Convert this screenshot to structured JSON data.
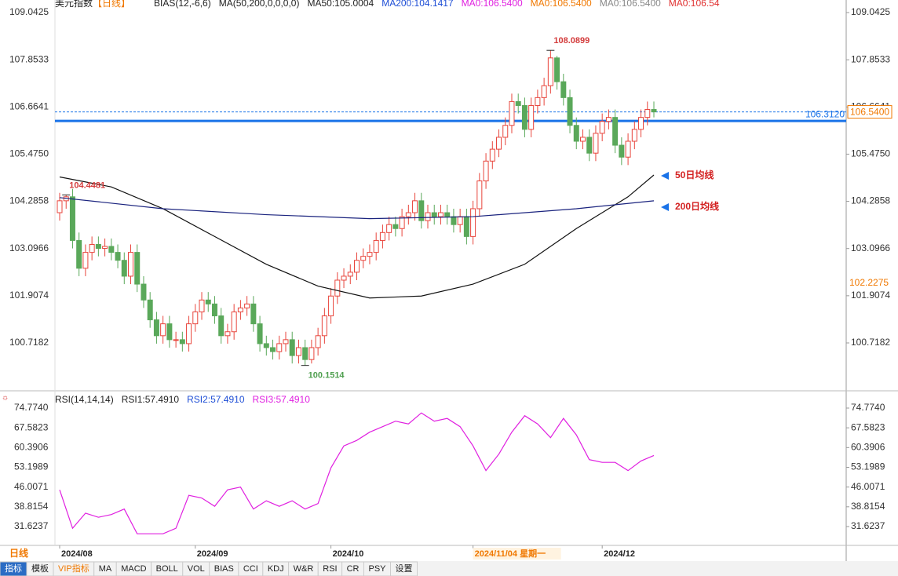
{
  "chart_data": [
    {
      "type": "candlestick",
      "title": "美元指数",
      "period": "【日线】",
      "indicators": [
        {
          "text": "BIAS(12,-6,6)",
          "color": "#222222"
        },
        {
          "text": "MA(50,200,0,0,0,0)",
          "color": "#222222"
        },
        {
          "text": "MA50:105.0004",
          "color": "#222222"
        },
        {
          "text": "MA200:104.1417",
          "color": "#1f4fd6"
        },
        {
          "text": "MA0:106.5400",
          "color": "#e020e0"
        },
        {
          "text": "MA0:106.5400",
          "color": "#f07800"
        },
        {
          "text": "MA0:106.5400",
          "color": "#888888"
        },
        {
          "text": "MA0:106.54",
          "color": "#e03030"
        }
      ],
      "open": [
        104.0,
        104.3,
        104.4,
        103.3,
        102.6,
        103.0,
        103.2,
        103.1,
        103.15,
        103.0,
        102.8,
        102.4,
        103.0,
        102.2,
        101.8,
        101.3,
        100.9,
        101.2,
        100.8,
        100.8,
        100.7,
        101.2,
        101.5,
        101.8,
        101.7,
        101.4,
        100.9,
        101.0,
        101.5,
        101.6,
        101.7,
        101.2,
        100.7,
        100.6,
        100.5,
        100.7,
        100.8,
        100.4,
        100.6,
        100.3,
        100.6,
        100.9,
        101.4,
        101.9,
        102.3,
        102.4,
        102.5,
        102.8,
        102.9,
        103.0,
        103.3,
        103.5,
        103.7,
        103.6,
        103.9,
        104.0,
        104.3,
        103.8,
        104.0,
        103.9,
        104.0,
        103.9,
        103.7,
        103.9,
        103.4,
        104.1,
        104.8,
        105.3,
        105.6,
        105.9,
        106.2,
        106.8,
        106.7,
        106.1,
        106.7,
        106.9,
        107.2,
        107.9,
        107.3,
        106.9,
        106.2,
        105.8,
        105.9,
        105.5,
        106.0,
        106.3,
        106.4,
        105.7,
        105.4,
        105.8,
        106.1,
        106.4,
        106.6
      ],
      "high": [
        104.5,
        104.4481,
        104.6,
        103.5,
        103.2,
        103.4,
        103.4,
        103.35,
        103.35,
        103.2,
        103.0,
        103.2,
        103.2,
        102.4,
        102.0,
        101.5,
        101.4,
        101.4,
        101.0,
        101.0,
        101.4,
        101.7,
        102.0,
        102.0,
        101.9,
        101.6,
        101.2,
        101.7,
        101.8,
        101.9,
        101.9,
        101.4,
        100.9,
        100.8,
        100.9,
        101.0,
        101.0,
        100.8,
        100.8,
        100.8,
        101.1,
        101.6,
        102.1,
        102.5,
        102.6,
        102.7,
        103.0,
        103.1,
        103.2,
        103.5,
        103.7,
        103.9,
        103.9,
        104.1,
        104.2,
        104.5,
        104.5,
        104.2,
        104.2,
        104.2,
        104.2,
        104.1,
        104.1,
        104.1,
        104.3,
        105.0,
        105.5,
        105.8,
        106.1,
        106.4,
        107.0,
        107.0,
        106.9,
        106.9,
        107.1,
        107.4,
        108.0899,
        107.95,
        107.5,
        107.1,
        106.4,
        106.1,
        106.1,
        106.2,
        106.5,
        106.6,
        106.6,
        105.9,
        106.0,
        106.3,
        106.6,
        106.8,
        106.8
      ],
      "low": [
        103.8,
        104.1,
        103.1,
        102.4,
        102.4,
        102.8,
        102.9,
        102.9,
        102.8,
        102.6,
        102.2,
        102.2,
        102.0,
        101.6,
        101.1,
        100.7,
        100.7,
        100.6,
        100.6,
        100.5,
        100.5,
        101.0,
        101.3,
        101.5,
        101.2,
        100.7,
        100.7,
        100.8,
        101.3,
        101.4,
        101.0,
        100.5,
        100.4,
        100.3,
        100.3,
        100.5,
        100.2,
        100.2,
        100.1514,
        100.2,
        100.4,
        100.7,
        101.2,
        101.7,
        102.1,
        102.2,
        102.3,
        102.6,
        102.7,
        102.8,
        103.1,
        103.3,
        103.4,
        103.4,
        103.7,
        103.8,
        103.6,
        103.6,
        103.7,
        103.7,
        103.7,
        103.5,
        103.5,
        103.2,
        103.2,
        103.9,
        104.6,
        105.1,
        105.4,
        105.7,
        106.0,
        106.5,
        105.9,
        105.9,
        106.5,
        106.7,
        107.0,
        107.1,
        106.7,
        106.0,
        105.6,
        105.6,
        105.3,
        105.3,
        105.8,
        106.1,
        105.5,
        105.2,
        105.2,
        105.6,
        105.9,
        106.2,
        106.4
      ],
      "close": [
        104.3,
        104.4,
        103.3,
        102.6,
        103.0,
        103.2,
        103.1,
        103.15,
        103.0,
        102.8,
        102.4,
        103.0,
        102.2,
        101.8,
        101.3,
        100.9,
        101.2,
        100.8,
        100.8,
        100.7,
        101.2,
        101.5,
        101.8,
        101.7,
        101.4,
        100.9,
        101.0,
        101.5,
        101.6,
        101.7,
        101.2,
        100.7,
        100.6,
        100.5,
        100.7,
        100.8,
        100.4,
        100.6,
        100.3,
        100.6,
        100.9,
        101.4,
        101.9,
        102.3,
        102.4,
        102.5,
        102.8,
        102.9,
        103.0,
        103.3,
        103.5,
        103.7,
        103.6,
        103.9,
        104.0,
        104.3,
        103.8,
        104.0,
        103.9,
        104.0,
        103.9,
        103.7,
        103.9,
        103.4,
        104.1,
        104.8,
        105.3,
        105.6,
        105.9,
        106.2,
        106.8,
        106.7,
        106.1,
        106.7,
        106.9,
        107.2,
        107.9,
        107.3,
        106.9,
        106.2,
        105.8,
        105.9,
        105.5,
        106.0,
        106.3,
        106.4,
        105.7,
        105.4,
        105.8,
        106.1,
        106.4,
        106.6,
        106.54
      ],
      "up_color": "#e8453c",
      "down_color": "#5aa85a",
      "lines": [
        {
          "name": "50日均线",
          "color": "#111111",
          "x_index": [
            0,
            8,
            16,
            24,
            32,
            40,
            48,
            56,
            64,
            72,
            80,
            88,
            92
          ],
          "values": [
            104.9,
            104.65,
            104.1,
            103.4,
            102.7,
            102.15,
            101.85,
            101.9,
            102.2,
            102.7,
            103.6,
            104.4,
            104.95
          ]
        },
        {
          "name": "200日均线",
          "color": "#1a237e",
          "x_index": [
            0,
            16,
            32,
            48,
            64,
            80,
            92
          ],
          "values": [
            104.38,
            104.1,
            103.95,
            103.85,
            103.9,
            104.1,
            104.3
          ]
        }
      ],
      "marked": [
        {
          "field": "high",
          "index": 1,
          "color": "#d33b3b"
        },
        {
          "field": "high",
          "index": 76,
          "color": "#d33b3b"
        },
        {
          "field": "low",
          "index": 38,
          "color": "#4f9f4f"
        }
      ],
      "hlines": [
        {
          "value": 106.312,
          "label": "106.3120",
          "color": "#1a73e8",
          "dashed": false
        },
        {
          "value": 106.54,
          "label": "106.5400",
          "color": "#1a73e8",
          "dashed": true
        }
      ],
      "price_label": {
        "value": 102.2275,
        "label": "102.2275",
        "color": "#f07800"
      },
      "ylim": [
        99.512,
        109.359
      ],
      "yticks": [
        109.0425,
        107.8533,
        106.6641,
        {
          "value": 105.475,
          "label": "105.4750"
        },
        104.2858,
        103.0966,
        101.9074,
        100.7182
      ],
      "x_labels": [
        {
          "index": 0,
          "label": "2024/08",
          "color": "#222222"
        },
        {
          "index": 21,
          "label": "2024/09",
          "color": "#222222"
        },
        {
          "index": 42,
          "label": "2024/10",
          "color": "#222222"
        },
        {
          "index": 64,
          "label": "2024/11/04 星期一",
          "color": "#f07800"
        },
        {
          "index": 84,
          "label": "2024/12",
          "color": "#222222"
        }
      ]
    },
    {
      "type": "line",
      "indicators": [
        {
          "text": "RSI(14,14,14)",
          "color": "#222222"
        },
        {
          "text": "RSI1:57.4910",
          "color": "#222222"
        },
        {
          "text": "RSI2:57.4910",
          "color": "#1f4fd6"
        },
        {
          "text": "RSI3:57.4910",
          "color": "#e020e0"
        }
      ],
      "series": [
        {
          "name": "RSI",
          "color": "#e020e0",
          "x_index": [
            0,
            2,
            4,
            6,
            8,
            10,
            12,
            14,
            16,
            18,
            20,
            22,
            24,
            26,
            28,
            30,
            32,
            34,
            36,
            38,
            40,
            42,
            44,
            46,
            48,
            50,
            52,
            54,
            56,
            58,
            60,
            62,
            64,
            66,
            68,
            70,
            72,
            74,
            76,
            78,
            80,
            82,
            84,
            86,
            88,
            90,
            92
          ],
          "values": [
            45,
            31,
            36.5,
            35,
            36,
            38,
            29,
            29,
            29,
            31,
            43,
            42,
            39,
            45,
            46,
            38,
            41,
            39,
            41,
            38,
            40,
            53,
            61,
            63,
            66,
            68,
            70,
            69,
            73,
            70,
            71,
            68,
            61,
            52,
            58,
            66,
            72,
            69,
            64,
            71,
            65,
            56,
            55,
            55,
            52,
            55.5,
            57.49
          ]
        }
      ],
      "ylim": [
        24.76,
        79.63
      ],
      "yticks": [
        {
          "value": 74.774,
          "label": "74.7740"
        },
        67.5823,
        60.3906,
        53.1989,
        46.0071,
        38.8154,
        31.6237
      ]
    },
    {
      "period_tab": "日线",
      "tabs": [
        "指标",
        "模板",
        "VIP指标",
        "MA",
        "MACD",
        "BOLL",
        "VOL",
        "BIAS",
        "CCI",
        "KDJ",
        "W&R",
        "RSI",
        "CR",
        "PSY",
        "设置"
      ]
    }
  ]
}
